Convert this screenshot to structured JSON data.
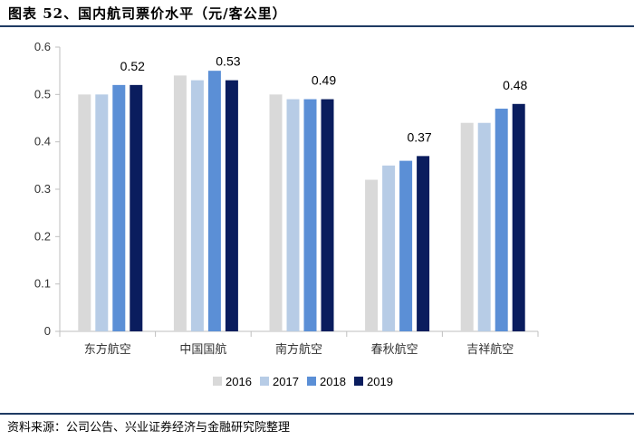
{
  "header": {
    "title": "图表 52、国内航司票价水平（元/客公里）"
  },
  "footer": {
    "source": "资料来源：公司公告、兴业证券经济与金融研究院整理"
  },
  "chart_data": {
    "type": "bar",
    "title": "",
    "xlabel": "",
    "ylabel": "",
    "categories": [
      "东方航空",
      "中国国航",
      "南方航空",
      "春秋航空",
      "吉祥航空"
    ],
    "series": [
      {
        "name": "2016",
        "color": "#d9d9d9",
        "values": [
          0.5,
          0.54,
          0.5,
          0.32,
          0.44
        ]
      },
      {
        "name": "2017",
        "color": "#b7cce6",
        "values": [
          0.5,
          0.53,
          0.49,
          0.35,
          0.44
        ]
      },
      {
        "name": "2018",
        "color": "#5b8fd6",
        "values": [
          0.52,
          0.55,
          0.49,
          0.36,
          0.47
        ]
      },
      {
        "name": "2019",
        "color": "#0a1d5e",
        "values": [
          0.52,
          0.53,
          0.49,
          0.37,
          0.48
        ]
      }
    ],
    "data_labels": {
      "series": "2019",
      "values": [
        "0.52",
        "0.53",
        "0.49",
        "0.37",
        "0.48"
      ]
    },
    "yticks": [
      "0",
      "0.1",
      "0.2",
      "0.3",
      "0.4",
      "0.5",
      "0.6"
    ],
    "ylim": [
      0,
      0.6
    ],
    "legend": "bottom",
    "grid": false
  }
}
